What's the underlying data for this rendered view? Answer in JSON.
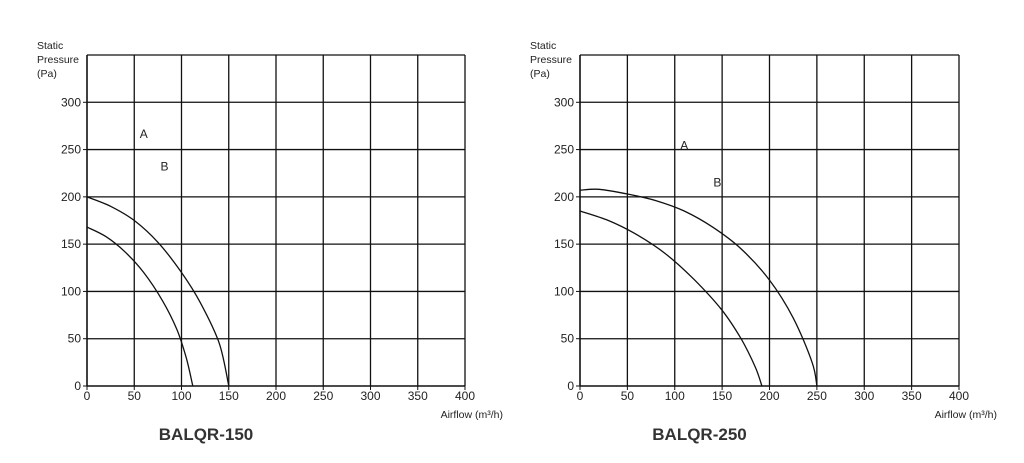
{
  "chart_data": [
    {
      "type": "line",
      "title": "BALQR-150",
      "ylabel_lines": [
        "Static",
        "Pressure",
        "(Pa)"
      ],
      "xlabel": "Airflow (m³/h)",
      "xlim": [
        0,
        400
      ],
      "ylim": [
        0,
        350
      ],
      "xticks": [
        "0",
        "50",
        "100",
        "150",
        "200",
        "250",
        "300",
        "350",
        "400"
      ],
      "yticks": [
        "0",
        "50",
        "100",
        "150",
        "200",
        "250",
        "300"
      ],
      "grid": true,
      "series": [
        {
          "name": "A",
          "x": [
            0,
            20,
            40,
            60,
            80,
            95,
            105,
            112
          ],
          "y": [
            168,
            158,
            142,
            120,
            90,
            60,
            30,
            0
          ]
        },
        {
          "name": "B",
          "x": [
            0,
            25,
            50,
            75,
            100,
            120,
            140,
            150
          ],
          "y": [
            200,
            190,
            175,
            152,
            120,
            88,
            45,
            0
          ]
        }
      ]
    },
    {
      "type": "line",
      "title": "BALQR-250",
      "ylabel_lines": [
        "Static",
        "Pressure",
        "(Pa)"
      ],
      "xlabel": "Airflow (m³/h)",
      "xlim": [
        0,
        400
      ],
      "ylim": [
        0,
        350
      ],
      "xticks": [
        "0",
        "50",
        "100",
        "150",
        "200",
        "250",
        "300",
        "350",
        "400"
      ],
      "yticks": [
        "0",
        "50",
        "100",
        "150",
        "200",
        "250",
        "300"
      ],
      "grid": true,
      "series": [
        {
          "name": "A",
          "x": [
            0,
            30,
            60,
            90,
            120,
            150,
            170,
            185,
            192
          ],
          "y": [
            185,
            175,
            160,
            140,
            113,
            80,
            50,
            20,
            0
          ]
        },
        {
          "name": "B",
          "x": [
            0,
            20,
            50,
            80,
            110,
            140,
            170,
            200,
            225,
            245,
            250
          ],
          "y": [
            207,
            208,
            203,
            196,
            185,
            168,
            145,
            112,
            72,
            25,
            0
          ]
        }
      ]
    }
  ]
}
